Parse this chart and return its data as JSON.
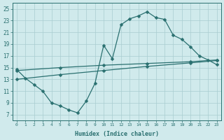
{
  "bg_color": "#d0eaec",
  "grid_color": "#a8cdd0",
  "line_color": "#2a7070",
  "xlabel": "Humidex (Indice chaleur)",
  "xlim": [
    -0.5,
    23.5
  ],
  "ylim": [
    6,
    26
  ],
  "xticks": [
    0,
    1,
    2,
    3,
    4,
    5,
    6,
    7,
    8,
    9,
    10,
    11,
    12,
    13,
    14,
    15,
    16,
    17,
    18,
    19,
    20,
    21,
    22,
    23
  ],
  "yticks": [
    7,
    9,
    11,
    13,
    15,
    17,
    19,
    21,
    23,
    25
  ],
  "line1_x": [
    0,
    1,
    2,
    3,
    4,
    5,
    6,
    7,
    8,
    9,
    10,
    11,
    12,
    13,
    14,
    15,
    16,
    17,
    18,
    19,
    20,
    21,
    22,
    23
  ],
  "line1_y": [
    14.7,
    13.2,
    12.1,
    11.0,
    9.0,
    8.5,
    7.8,
    7.3,
    9.3,
    12.3,
    18.8,
    16.5,
    22.3,
    23.3,
    23.8,
    24.5,
    23.5,
    23.2,
    20.5,
    19.8,
    18.5,
    17.0,
    16.3,
    15.5
  ],
  "line2_x": [
    0,
    5,
    10,
    15,
    20,
    23
  ],
  "line2_y": [
    13.0,
    13.8,
    14.5,
    15.2,
    15.8,
    16.2
  ],
  "line3_x": [
    0,
    5,
    10,
    15,
    20,
    23
  ],
  "line3_y": [
    14.5,
    15.0,
    15.4,
    15.7,
    16.0,
    16.3
  ],
  "marker_size": 2.5,
  "line_width": 0.9
}
